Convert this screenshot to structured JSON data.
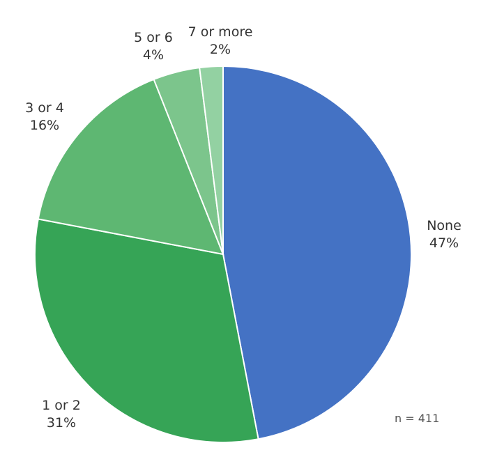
{
  "chart_data": {
    "type": "pie",
    "slices": [
      {
        "label": "None",
        "value": 47,
        "value_label": "47%",
        "color": "#4472c4"
      },
      {
        "label": "1 or 2",
        "value": 31,
        "value_label": "31%",
        "color": "#36a456"
      },
      {
        "label": "3 or 4",
        "value": 16,
        "value_label": "16%",
        "color": "#5eb772"
      },
      {
        "label": "5 or 6",
        "value": 4,
        "value_label": "4%",
        "color": "#7cc58c"
      },
      {
        "label": "7 or more",
        "value": 2,
        "value_label": "2%",
        "color": "#93d1a2"
      }
    ],
    "start_angle": "12 o'clock",
    "direction": "clockwise"
  },
  "note": "n = 411"
}
